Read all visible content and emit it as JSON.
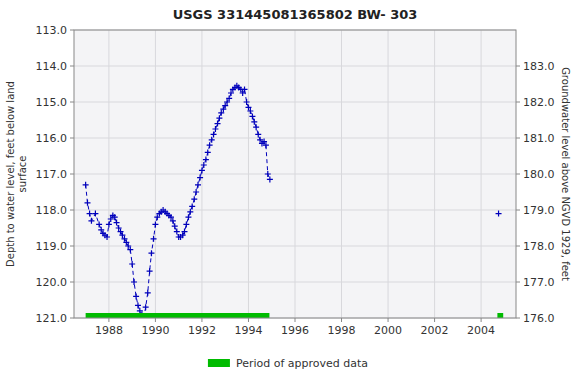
{
  "chart_data": {
    "type": "line",
    "title": "USGS 331445081365802 BW- 303",
    "y_label": "Depth to water level, feet below land\nsurface",
    "y2_label": "Groundwater level above NGVD 1929, feet",
    "xlim": [
      1986.5,
      2005.5
    ],
    "xticks": [
      1988,
      1990,
      1992,
      1994,
      1996,
      1998,
      2000,
      2002,
      2004
    ],
    "ylim": [
      121.0,
      113.0
    ],
    "yticks": [
      {
        "value": 113.0,
        "label": "113.0"
      },
      {
        "value": 114.0,
        "label": "114.0"
      },
      {
        "value": 115.0,
        "label": "115.0"
      },
      {
        "value": 116.0,
        "label": "116.0"
      },
      {
        "value": 117.0,
        "label": "117.0"
      },
      {
        "value": 118.0,
        "label": "118.0"
      },
      {
        "value": 119.0,
        "label": "119.0"
      },
      {
        "value": 120.0,
        "label": "120.0"
      },
      {
        "value": 121.0,
        "label": "121.0"
      }
    ],
    "y2lim": [
      176.0,
      184.0
    ],
    "y2ticks": [
      {
        "value": 176.0,
        "label": "176.0"
      },
      {
        "value": 177.0,
        "label": "177.0"
      },
      {
        "value": 178.0,
        "label": "178.0"
      },
      {
        "value": 179.0,
        "label": "179.0"
      },
      {
        "value": 180.0,
        "label": "180.0"
      },
      {
        "value": 181.0,
        "label": "181.0"
      },
      {
        "value": 182.0,
        "label": "182.0"
      },
      {
        "value": 183.0,
        "label": "183.0"
      }
    ],
    "grid": true,
    "legend": "bottom",
    "series": [
      {
        "type": "line",
        "color": "#0000bb",
        "marker": "plus",
        "line_style": "dashed",
        "x": [
          1987.0,
          1987.08,
          1987.17,
          1987.25,
          1987.42,
          1987.58,
          1987.67,
          1987.75,
          1987.83,
          1987.92,
          1988.0,
          1988.08,
          1988.17,
          1988.25,
          1988.33,
          1988.42,
          1988.5,
          1988.58,
          1988.67,
          1988.75,
          1988.83,
          1988.92,
          1989.0,
          1989.08,
          1989.17,
          1989.25,
          1989.33,
          1989.42,
          1989.5,
          1989.58,
          1989.67,
          1989.75,
          1989.83,
          1989.92,
          1990.0,
          1990.08,
          1990.17,
          1990.25,
          1990.33,
          1990.42,
          1990.5,
          1990.58,
          1990.67,
          1990.75,
          1990.83,
          1990.92,
          1991.0,
          1991.08,
          1991.17,
          1991.25,
          1991.33,
          1991.42,
          1991.5,
          1991.58,
          1991.67,
          1991.75,
          1991.83,
          1991.92,
          1992.0,
          1992.08,
          1992.17,
          1992.25,
          1992.33,
          1992.42,
          1992.5,
          1992.58,
          1992.67,
          1992.75,
          1992.83,
          1992.92,
          1993.0,
          1993.08,
          1993.17,
          1993.25,
          1993.33,
          1993.42,
          1993.5,
          1993.58,
          1993.67,
          1993.75,
          1993.83,
          1993.92,
          1994.0,
          1994.08,
          1994.17,
          1994.25,
          1994.33,
          1994.42,
          1994.5,
          1994.58,
          1994.67,
          1994.75,
          1994.83,
          1994.92
        ],
        "values": [
          117.3,
          117.8,
          118.1,
          118.3,
          118.1,
          118.4,
          118.55,
          118.65,
          118.7,
          118.75,
          118.4,
          118.25,
          118.15,
          118.2,
          118.35,
          118.5,
          118.6,
          118.7,
          118.8,
          118.9,
          119.0,
          119.1,
          119.5,
          120.0,
          120.4,
          120.65,
          120.8,
          120.9,
          121.0,
          120.7,
          120.3,
          119.7,
          119.2,
          118.8,
          118.4,
          118.2,
          118.1,
          118.05,
          118.0,
          118.05,
          118.1,
          118.15,
          118.2,
          118.3,
          118.45,
          118.6,
          118.75,
          118.75,
          118.7,
          118.6,
          118.4,
          118.2,
          118.05,
          117.9,
          117.7,
          117.5,
          117.3,
          117.1,
          116.9,
          116.75,
          116.6,
          116.4,
          116.2,
          116.05,
          115.9,
          115.75,
          115.6,
          115.45,
          115.3,
          115.2,
          115.1,
          115.0,
          114.9,
          114.75,
          114.65,
          114.6,
          114.55,
          114.6,
          114.65,
          114.75,
          114.65,
          115.0,
          115.15,
          115.25,
          115.4,
          115.55,
          115.7,
          115.9,
          116.05,
          116.15,
          116.1,
          116.2,
          117.0,
          117.15
        ]
      },
      {
        "type": "line",
        "color": "#0000bb",
        "marker": "plus",
        "line_style": "none",
        "x": [
          2004.75
        ],
        "values": [
          118.1
        ]
      },
      {
        "type": "span",
        "name": "Period of approved data",
        "color": "#00bb00",
        "x_start": [
          1987.0,
          2004.7
        ],
        "x_end": [
          1994.9,
          2004.95
        ]
      }
    ]
  }
}
